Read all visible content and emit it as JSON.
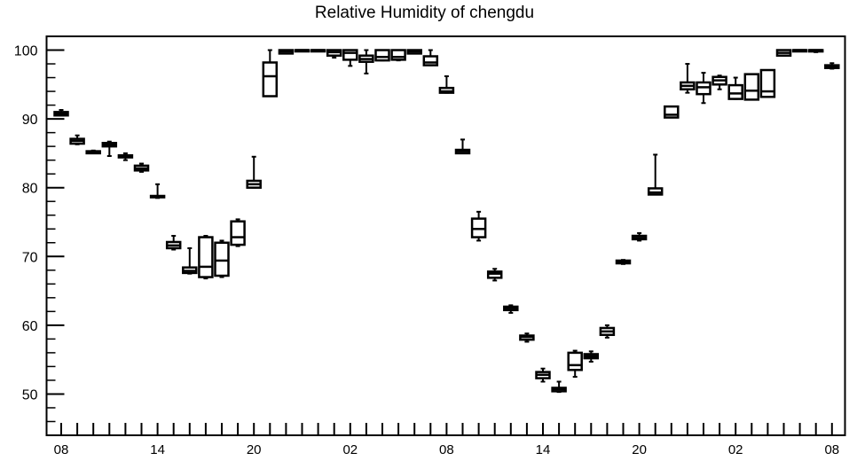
{
  "chart_data": {
    "type": "box",
    "title": "Relative Humidity of chengdu",
    "xlabel": "",
    "ylabel": "",
    "ylim": [
      44,
      102
    ],
    "y_ticks": [
      50,
      60,
      70,
      80,
      90,
      100
    ],
    "x_tick_labels": [
      "08",
      "14",
      "20",
      "02",
      "08",
      "14",
      "20",
      "02",
      "08"
    ],
    "x_tick_hours": [
      0,
      6,
      12,
      18,
      24,
      30,
      36,
      42,
      48
    ],
    "grid": false,
    "line_color": "#000000",
    "boxes": [
      {
        "hour": 0,
        "whisker_low": 90.5,
        "q1": 90.5,
        "median": 90.7,
        "q3": 91.0,
        "whisker_high": 91.3
      },
      {
        "hour": 1,
        "whisker_low": 86.3,
        "q1": 86.4,
        "median": 86.8,
        "q3": 87.1,
        "whisker_high": 87.6
      },
      {
        "hour": 2,
        "whisker_low": 85.0,
        "q1": 85.0,
        "median": 85.2,
        "q3": 85.3,
        "whisker_high": 85.4
      },
      {
        "hour": 3,
        "whisker_low": 84.6,
        "q1": 86.0,
        "median": 86.3,
        "q3": 86.5,
        "whisker_high": 86.7
      },
      {
        "hour": 4,
        "whisker_low": 84.0,
        "q1": 84.4,
        "median": 84.6,
        "q3": 84.7,
        "whisker_high": 85.0
      },
      {
        "hour": 5,
        "whisker_low": 82.3,
        "q1": 82.5,
        "median": 82.8,
        "q3": 83.2,
        "whisker_high": 83.5
      },
      {
        "hour": 6,
        "whisker_low": 78.5,
        "q1": 78.6,
        "median": 78.7,
        "q3": 78.8,
        "whisker_high": 80.5
      },
      {
        "hour": 7,
        "whisker_low": 71.0,
        "q1": 71.2,
        "median": 71.6,
        "q3": 72.1,
        "whisker_high": 73.0
      },
      {
        "hour": 8,
        "whisker_low": 67.5,
        "q1": 67.6,
        "median": 67.9,
        "q3": 68.4,
        "whisker_high": 71.2
      },
      {
        "hour": 9,
        "whisker_low": 66.8,
        "q1": 67.0,
        "median": 68.5,
        "q3": 72.8,
        "whisker_high": 73.0
      },
      {
        "hour": 10,
        "whisker_low": 67.0,
        "q1": 67.2,
        "median": 69.4,
        "q3": 72.0,
        "whisker_high": 72.3
      },
      {
        "hour": 11,
        "whisker_low": 71.5,
        "q1": 71.7,
        "median": 72.8,
        "q3": 75.1,
        "whisker_high": 75.4
      },
      {
        "hour": 12,
        "whisker_low": 80.0,
        "q1": 80.0,
        "median": 80.5,
        "q3": 81.0,
        "whisker_high": 84.5
      },
      {
        "hour": 13,
        "whisker_low": 93.3,
        "q1": 93.3,
        "median": 96.2,
        "q3": 98.2,
        "whisker_high": 100.0
      },
      {
        "hour": 14,
        "whisker_low": 99.5,
        "q1": 99.5,
        "median": 99.8,
        "q3": 100.0,
        "whisker_high": 100.0
      },
      {
        "hour": 15,
        "whisker_low": 100.0,
        "q1": 100.0,
        "median": 100.0,
        "q3": 100.0,
        "whisker_high": 100.0
      },
      {
        "hour": 16,
        "whisker_low": 100.0,
        "q1": 100.0,
        "median": 100.0,
        "q3": 100.0,
        "whisker_high": 100.0
      },
      {
        "hour": 17,
        "whisker_low": 98.9,
        "q1": 99.2,
        "median": 99.7,
        "q3": 100.0,
        "whisker_high": 100.0
      },
      {
        "hour": 18,
        "whisker_low": 97.7,
        "q1": 98.6,
        "median": 99.6,
        "q3": 100.0,
        "whisker_high": 100.0
      },
      {
        "hour": 19,
        "whisker_low": 96.6,
        "q1": 98.3,
        "median": 98.7,
        "q3": 99.2,
        "whisker_high": 100.0
      },
      {
        "hour": 20,
        "whisker_low": 98.5,
        "q1": 98.5,
        "median": 99.0,
        "q3": 100.0,
        "whisker_high": 100.0
      },
      {
        "hour": 21,
        "whisker_low": 98.5,
        "q1": 98.6,
        "median": 99.0,
        "q3": 100.0,
        "whisker_high": 100.0
      },
      {
        "hour": 22,
        "whisker_low": 99.5,
        "q1": 99.5,
        "median": 99.8,
        "q3": 100.0,
        "whisker_high": 100.0
      },
      {
        "hour": 23,
        "whisker_low": 97.8,
        "q1": 97.8,
        "median": 98.2,
        "q3": 99.1,
        "whisker_high": 100.0
      },
      {
        "hour": 24,
        "whisker_low": 93.8,
        "q1": 93.8,
        "median": 94.0,
        "q3": 94.5,
        "whisker_high": 96.2
      },
      {
        "hour": 25,
        "whisker_low": 85.0,
        "q1": 85.0,
        "median": 85.3,
        "q3": 85.5,
        "whisker_high": 87.0
      },
      {
        "hour": 26,
        "whisker_low": 72.3,
        "q1": 72.8,
        "median": 74.0,
        "q3": 75.5,
        "whisker_high": 76.5
      },
      {
        "hour": 27,
        "whisker_low": 66.5,
        "q1": 66.9,
        "median": 67.5,
        "q3": 67.8,
        "whisker_high": 68.2
      },
      {
        "hour": 28,
        "whisker_low": 61.8,
        "q1": 62.2,
        "median": 62.5,
        "q3": 62.7,
        "whisker_high": 62.9
      },
      {
        "hour": 29,
        "whisker_low": 57.6,
        "q1": 57.9,
        "median": 58.3,
        "q3": 58.5,
        "whisker_high": 58.8
      },
      {
        "hour": 30,
        "whisker_low": 51.8,
        "q1": 52.3,
        "median": 52.8,
        "q3": 53.2,
        "whisker_high": 53.7
      },
      {
        "hour": 31,
        "whisker_low": 50.3,
        "q1": 50.4,
        "median": 50.7,
        "q3": 50.9,
        "whisker_high": 51.8
      },
      {
        "hour": 32,
        "whisker_low": 52.5,
        "q1": 53.5,
        "median": 54.2,
        "q3": 56.0,
        "whisker_high": 56.3
      },
      {
        "hour": 33,
        "whisker_low": 54.7,
        "q1": 55.2,
        "median": 55.5,
        "q3": 55.8,
        "whisker_high": 56.2
      },
      {
        "hour": 34,
        "whisker_low": 58.2,
        "q1": 58.6,
        "median": 59.1,
        "q3": 59.6,
        "whisker_high": 60.0
      },
      {
        "hour": 35,
        "whisker_low": 68.9,
        "q1": 69.0,
        "median": 69.2,
        "q3": 69.4,
        "whisker_high": 69.5
      },
      {
        "hour": 36,
        "whisker_low": 72.3,
        "q1": 72.5,
        "median": 72.7,
        "q3": 73.0,
        "whisker_high": 73.4
      },
      {
        "hour": 37,
        "whisker_low": 79.0,
        "q1": 79.0,
        "median": 79.3,
        "q3": 79.9,
        "whisker_high": 84.8
      },
      {
        "hour": 38,
        "whisker_low": 90.2,
        "q1": 90.2,
        "median": 90.6,
        "q3": 91.8,
        "whisker_high": 91.8
      },
      {
        "hour": 39,
        "whisker_low": 93.8,
        "q1": 94.3,
        "median": 94.8,
        "q3": 95.3,
        "whisker_high": 98.0
      },
      {
        "hour": 40,
        "whisker_low": 92.3,
        "q1": 93.6,
        "median": 94.6,
        "q3": 95.3,
        "whisker_high": 96.7
      },
      {
        "hour": 41,
        "whisker_low": 94.3,
        "q1": 95.0,
        "median": 95.6,
        "q3": 96.1,
        "whisker_high": 96.3
      },
      {
        "hour": 42,
        "whisker_low": 92.9,
        "q1": 92.9,
        "median": 93.7,
        "q3": 94.9,
        "whisker_high": 96.0
      },
      {
        "hour": 43,
        "whisker_low": 92.8,
        "q1": 92.8,
        "median": 94.1,
        "q3": 96.5,
        "whisker_high": 96.5
      },
      {
        "hour": 44,
        "whisker_low": 93.2,
        "q1": 93.2,
        "median": 94.0,
        "q3": 97.1,
        "whisker_high": 97.1
      },
      {
        "hour": 45,
        "whisker_low": 99.2,
        "q1": 99.2,
        "median": 99.6,
        "q3": 100.0,
        "whisker_high": 100.0
      },
      {
        "hour": 46,
        "whisker_low": 100.0,
        "q1": 100.0,
        "median": 100.0,
        "q3": 100.0,
        "whisker_high": 100.0
      },
      {
        "hour": 47,
        "whisker_low": 99.7,
        "q1": 99.8,
        "median": 100.0,
        "q3": 100.0,
        "whisker_high": 100.0
      },
      {
        "hour": 48,
        "whisker_low": 97.3,
        "q1": 97.4,
        "median": 97.6,
        "q3": 97.8,
        "whisker_high": 98.1
      }
    ]
  }
}
